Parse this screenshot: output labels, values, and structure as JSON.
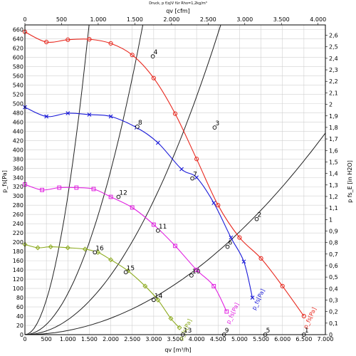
{
  "chart_data": {
    "type": "line",
    "title": "Druck, p f(q)V für Rho=1,2kg/m³",
    "xlabel": "qv [m³/h]",
    "x2label": "qv [cfm]",
    "ylabel": "p_fs[Pa]",
    "y2label": "p fs_E [in H2O]",
    "xlim": [
      0,
      7000
    ],
    "x2lim": [
      0,
      4100
    ],
    "ylim": [
      0,
      670
    ],
    "y2lim": [
      0,
      2.69
    ],
    "grid": true,
    "x_ticks": [
      "0",
      "500",
      "1.000",
      "1.500",
      "2.000",
      "2.500",
      "3.000",
      "3.500",
      "4.000",
      "4.500",
      "5.000",
      "5.500",
      "6.000",
      "6.500",
      "7.000"
    ],
    "x2_ticks": [
      "0",
      "500",
      "1.000",
      "1.500",
      "2.000",
      "2.500",
      "3.000",
      "3.500",
      "4.000"
    ],
    "y_ticks": [
      "0",
      "20",
      "40",
      "60",
      "80",
      "100",
      "120",
      "140",
      "160",
      "180",
      "200",
      "220",
      "240",
      "260",
      "280",
      "300",
      "320",
      "340",
      "360",
      "380",
      "400",
      "420",
      "440",
      "460",
      "480",
      "500",
      "520",
      "540",
      "560",
      "580",
      "600",
      "620",
      "640",
      "660"
    ],
    "y2_ticks": [
      "0",
      "0,1",
      "0,2",
      "0,3",
      "0,4",
      "0,5",
      "0,6",
      "0,7",
      "0,8",
      "0,9",
      "1",
      "1,1",
      "1,2",
      "1,3",
      "1,4",
      "1,5",
      "1,6",
      "1,7",
      "1,8",
      "1,9",
      "2",
      "2,1",
      "2,2",
      "2,3",
      "2,4",
      "2,5",
      "2,6"
    ],
    "series": [
      {
        "name": "p_fs[Pa]",
        "color": "#e8281e",
        "marker": "circle",
        "x": [
          0,
          500,
          1000,
          1500,
          2000,
          2500,
          3000,
          3500,
          4000,
          4500,
          5000,
          5500,
          6000,
          6500
        ],
        "y": [
          655,
          633,
          638,
          639,
          630,
          605,
          555,
          478,
          380,
          280,
          210,
          165,
          105,
          40
        ]
      },
      {
        "name": "p_fs[Pa]",
        "color": "#1a1ad8",
        "marker": "x",
        "x": [
          0,
          500,
          1000,
          1500,
          2000,
          2600,
          3100,
          3650,
          4000,
          4400,
          4800,
          5100,
          5300
        ],
        "y": [
          492,
          472,
          479,
          476,
          472,
          448,
          415,
          358,
          340,
          285,
          210,
          158,
          80
        ]
      },
      {
        "name": "p_fs[Pa]",
        "color": "#e020e0",
        "marker": "square",
        "x": [
          0,
          400,
          800,
          1200,
          1600,
          2000,
          2500,
          3000,
          3500,
          4000,
          4400,
          4700
        ],
        "y": [
          325,
          313,
          318,
          318,
          315,
          298,
          275,
          238,
          192,
          140,
          105,
          50
        ]
      },
      {
        "name": "p_fs[Pa]",
        "color": "#8caa1e",
        "marker": "diamond",
        "x": [
          0,
          300,
          600,
          1000,
          1400,
          1700,
          2000,
          2400,
          2800,
          3100,
          3400,
          3600
        ],
        "y": [
          195,
          188,
          190,
          188,
          185,
          178,
          162,
          138,
          105,
          75,
          35,
          15
        ]
      }
    ],
    "system_curves": [
      {
        "k": 0.0003,
        "end_x": 5600
      },
      {
        "k": 8.88e-05,
        "end_x": 7000
      },
      {
        "k": 3.22e-05,
        "end_x": 7000
      },
      {
        "k": 8.9e-06,
        "end_x": 7000
      }
    ],
    "operating_points": [
      {
        "label": "1",
        "x": 6500,
        "y": 0
      },
      {
        "label": "2",
        "x": 5400,
        "y": 250
      },
      {
        "label": "3",
        "x": 4420,
        "y": 448
      },
      {
        "label": "4",
        "x": 2980,
        "y": 602
      },
      {
        "label": "5",
        "x": 5600,
        "y": 0
      },
      {
        "label": "6",
        "x": 4720,
        "y": 190
      },
      {
        "label": "7",
        "x": 3900,
        "y": 338
      },
      {
        "label": "8",
        "x": 2620,
        "y": 450
      },
      {
        "label": "9",
        "x": 4640,
        "y": 0
      },
      {
        "label": "10",
        "x": 3880,
        "y": 128
      },
      {
        "label": "11",
        "x": 3100,
        "y": 225
      },
      {
        "label": "12",
        "x": 2180,
        "y": 298
      },
      {
        "label": "13",
        "x": 3680,
        "y": 0
      },
      {
        "label": "14",
        "x": 3000,
        "y": 75
      },
      {
        "label": "15",
        "x": 2350,
        "y": 135
      },
      {
        "label": "16",
        "x": 1630,
        "y": 178
      }
    ]
  }
}
